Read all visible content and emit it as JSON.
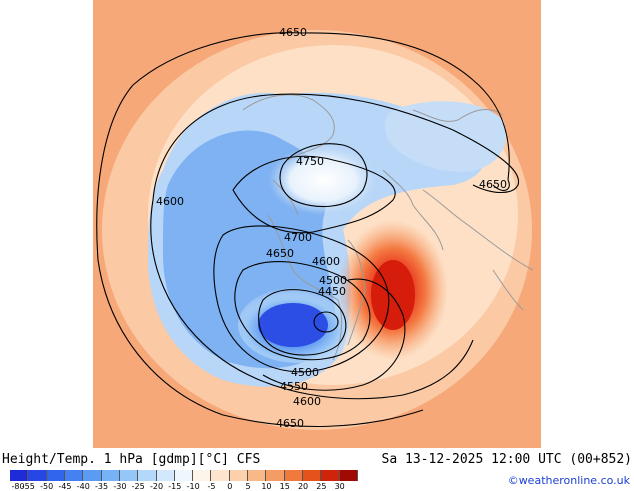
{
  "title": "Height/Temp. 1 hPa [gdmp][°C] CFS",
  "valid_time": "Sa 13-12-2025 12:00 UTC (00+852)",
  "credit": "©weatheronline.co.uk",
  "colorbar": {
    "ticks": [
      "-80",
      "-55",
      "-50",
      "-45",
      "-40",
      "-35",
      "-30",
      "-25",
      "-20",
      "-15",
      "-10",
      "-5",
      "0",
      "5",
      "10",
      "15",
      "20",
      "25",
      "30"
    ],
    "colors": [
      "#1d2bd8",
      "#2646e6",
      "#3265ee",
      "#4482f2",
      "#5a9cf4",
      "#76b2f6",
      "#95c6f8",
      "#b4d8fa",
      "#d3e8fc",
      "#eef6fe",
      "#fdf4ea",
      "#fde4cc",
      "#fbd0aa",
      "#f8b887",
      "#f59c64",
      "#f07a3e",
      "#e6521c",
      "#d0240a",
      "#a00a02"
    ]
  },
  "contour_labels": [
    "4650",
    "4750",
    "4650",
    "4600",
    "4700",
    "4650",
    "4600",
    "4500",
    "4450",
    "4500",
    "4550",
    "4600",
    "4650"
  ]
}
